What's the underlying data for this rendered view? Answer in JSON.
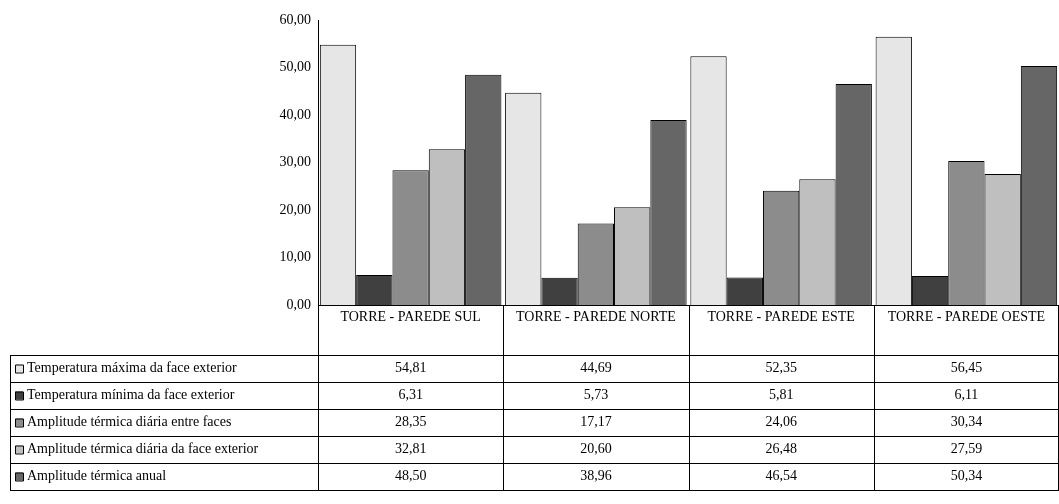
{
  "chart_data": {
    "type": "bar",
    "categories": [
      "TORRE - PAREDE SUL",
      "TORRE - PAREDE NORTE",
      "TORRE - PAREDE ESTE",
      "TORRE - PAREDE OESTE"
    ],
    "series": [
      {
        "name": "Temperatura máxima da face exterior",
        "color": "#e6e6e6",
        "values": [
          54.81,
          44.69,
          52.35,
          56.45
        ],
        "value_labels": [
          "54,81",
          "44,69",
          "52,35",
          "56,45"
        ]
      },
      {
        "name": "Temperatura mínima da face exterior",
        "color": "#404040",
        "values": [
          6.31,
          5.73,
          5.81,
          6.11
        ],
        "value_labels": [
          "6,31",
          "5,73",
          "5,81",
          "6,11"
        ]
      },
      {
        "name": "Amplitude térmica diária entre faces",
        "color": "#8c8c8c",
        "values": [
          28.35,
          17.17,
          24.06,
          30.34
        ],
        "value_labels": [
          "28,35",
          "17,17",
          "24,06",
          "30,34"
        ]
      },
      {
        "name": "Amplitude térmica diária da face exterior",
        "color": "#bfbfbf",
        "values": [
          32.81,
          20.6,
          26.48,
          27.59
        ],
        "value_labels": [
          "32,81",
          "20,60",
          "26,48",
          "27,59"
        ]
      },
      {
        "name": "Amplitude térmica anual",
        "color": "#666666",
        "values": [
          48.5,
          38.96,
          46.54,
          50.34
        ],
        "value_labels": [
          "48,50",
          "38,96",
          "46,54",
          "50,34"
        ]
      }
    ],
    "ylim": [
      0,
      60
    ],
    "yticks": [
      {
        "value": 0,
        "label": "0,00"
      },
      {
        "value": 10,
        "label": "10,00"
      },
      {
        "value": 20,
        "label": "20,00"
      },
      {
        "value": 30,
        "label": "30,00"
      },
      {
        "value": 40,
        "label": "40,00"
      },
      {
        "value": 50,
        "label": "50,00"
      },
      {
        "value": 60,
        "label": "60,00"
      }
    ],
    "grid": false,
    "legend": "bottom"
  }
}
